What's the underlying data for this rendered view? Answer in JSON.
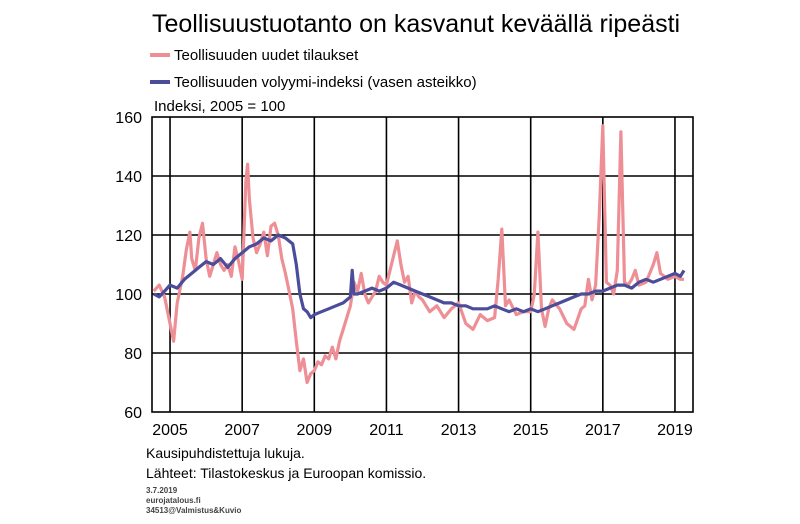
{
  "chart_data": {
    "type": "line",
    "title": "Teollisuustuotanto on kasvanut keväällä ripeästi",
    "ylabel": "Indeksi, 2005 = 100",
    "ylim": [
      60,
      160
    ],
    "yticks": [
      60,
      80,
      100,
      120,
      140,
      160
    ],
    "xlim": [
      2004.5,
      2019.5
    ],
    "xticks": [
      2005,
      2007,
      2009,
      2011,
      2013,
      2015,
      2017,
      2019
    ],
    "xtick_labels": [
      "2005",
      "2007",
      "2009",
      "2011",
      "2013",
      "2015",
      "2017",
      "2019"
    ],
    "grid": true,
    "legend_placement": "top-left",
    "series": [
      {
        "name": "Teollisuuden uudet tilaukset",
        "color": "#ee8f96",
        "x": [
          2004.55,
          2004.7,
          2004.85,
          2005.0,
          2005.1,
          2005.2,
          2005.35,
          2005.45,
          2005.55,
          2005.6,
          2005.7,
          2005.8,
          2005.9,
          2006.0,
          2006.1,
          2006.2,
          2006.3,
          2006.4,
          2006.5,
          2006.6,
          2006.7,
          2006.8,
          2006.9,
          2007.0,
          2007.05,
          2007.1,
          2007.15,
          2007.2,
          2007.3,
          2007.4,
          2007.5,
          2007.6,
          2007.7,
          2007.8,
          2007.9,
          2008.0,
          2008.1,
          2008.2,
          2008.3,
          2008.4,
          2008.5,
          2008.6,
          2008.7,
          2008.8,
          2008.9,
          2009.0,
          2009.1,
          2009.2,
          2009.3,
          2009.4,
          2009.5,
          2009.6,
          2009.7,
          2009.8,
          2009.9,
          2010.0,
          2010.1,
          2010.2,
          2010.3,
          2010.4,
          2010.5,
          2010.6,
          2010.7,
          2010.8,
          2010.9,
          2011.0,
          2011.1,
          2011.2,
          2011.3,
          2011.4,
          2011.5,
          2011.6,
          2011.7,
          2011.8,
          2011.9,
          2012.0,
          2012.2,
          2012.4,
          2012.6,
          2012.8,
          2013.0,
          2013.2,
          2013.4,
          2013.6,
          2013.8,
          2014.0,
          2014.1,
          2014.2,
          2014.3,
          2014.4,
          2014.6,
          2014.8,
          2015.0,
          2015.1,
          2015.2,
          2015.3,
          2015.4,
          2015.5,
          2015.6,
          2015.8,
          2016.0,
          2016.2,
          2016.4,
          2016.5,
          2016.6,
          2016.7,
          2016.8,
          2016.9,
          2017.0,
          2017.1,
          2017.2,
          2017.3,
          2017.4,
          2017.5,
          2017.6,
          2017.7,
          2017.8,
          2017.9,
          2018.0,
          2018.2,
          2018.4,
          2018.5,
          2018.6,
          2018.8,
          2019.0,
          2019.15,
          2019.25
        ],
        "values": [
          101,
          103,
          99,
          90,
          84,
          97,
          106,
          115,
          121,
          112,
          108,
          119,
          124,
          112,
          106,
          110,
          114,
          110,
          108,
          110,
          106,
          116,
          111,
          105,
          121,
          138,
          144,
          132,
          119,
          114,
          117,
          121,
          113,
          123,
          124,
          120,
          112,
          107,
          101,
          95,
          84,
          74,
          78,
          70,
          73,
          74,
          77,
          76,
          79,
          78,
          82,
          78,
          84,
          88,
          92,
          96,
          104,
          101,
          107,
          100,
          97,
          99,
          101,
          106,
          104,
          103,
          108,
          113,
          118,
          110,
          104,
          106,
          97,
          101,
          99,
          98,
          94,
          96,
          92,
          95,
          97,
          90,
          88,
          93,
          91,
          92,
          105,
          122,
          96,
          98,
          93,
          94,
          94,
          100,
          121,
          95,
          89,
          95,
          98,
          95,
          90,
          88,
          95,
          96,
          105,
          98,
          103,
          126,
          157,
          104,
          103,
          100,
          108,
          155,
          104,
          103,
          105,
          108,
          103,
          104,
          110,
          114,
          107,
          105,
          106,
          105,
          105
        ],
        "line_width": 3.2
      },
      {
        "name": "Teollisuuden volyymi-indeksi (vasen asteikko)",
        "color": "#4b4c9a",
        "x": [
          2004.55,
          2004.7,
          2004.85,
          2005.0,
          2005.2,
          2005.4,
          2005.6,
          2005.8,
          2006.0,
          2006.2,
          2006.4,
          2006.6,
          2006.8,
          2007.0,
          2007.2,
          2007.4,
          2007.6,
          2007.8,
          2008.0,
          2008.2,
          2008.4,
          2008.5,
          2008.6,
          2008.7,
          2008.8,
          2008.9,
          2009.0,
          2009.2,
          2009.4,
          2009.6,
          2009.8,
          2010.0,
          2010.05,
          2010.1,
          2010.2,
          2010.4,
          2010.6,
          2010.8,
          2011.0,
          2011.2,
          2011.4,
          2011.6,
          2011.8,
          2012.0,
          2012.2,
          2012.4,
          2012.6,
          2012.8,
          2013.0,
          2013.2,
          2013.4,
          2013.6,
          2013.8,
          2014.0,
          2014.2,
          2014.4,
          2014.6,
          2014.8,
          2015.0,
          2015.2,
          2015.4,
          2015.6,
          2015.8,
          2016.0,
          2016.2,
          2016.4,
          2016.6,
          2016.8,
          2017.0,
          2017.2,
          2017.4,
          2017.6,
          2017.8,
          2018.0,
          2018.2,
          2018.4,
          2018.6,
          2018.8,
          2019.0,
          2019.15,
          2019.25
        ],
        "values": [
          100,
          99,
          101,
          103,
          102,
          105,
          107,
          109,
          111,
          110,
          112,
          109,
          112,
          114,
          116,
          117,
          119,
          118,
          120,
          119,
          117,
          110,
          100,
          95,
          94,
          92,
          93,
          94,
          95,
          96,
          97,
          99,
          108,
          100,
          100,
          101,
          102,
          101,
          102,
          104,
          103,
          102,
          101,
          100,
          99,
          98,
          97,
          97,
          96,
          96,
          95,
          95,
          95,
          96,
          95,
          94,
          95,
          94,
          95,
          94,
          95,
          96,
          97,
          98,
          99,
          100,
          100,
          101,
          101,
          102,
          103,
          103,
          102,
          104,
          105,
          104,
          105,
          106,
          107,
          106,
          108
        ],
        "line_width": 3.2
      }
    ]
  },
  "notes": {
    "line1": "Kausipuhdistettuja lukuja.",
    "line2": "Lähteet: Tilastokeskus ja Euroopan komissio.",
    "line3": "3.7.2019",
    "line4": "eurojatalous.fi",
    "line5": "34513@Valmistus&Kuvio"
  }
}
